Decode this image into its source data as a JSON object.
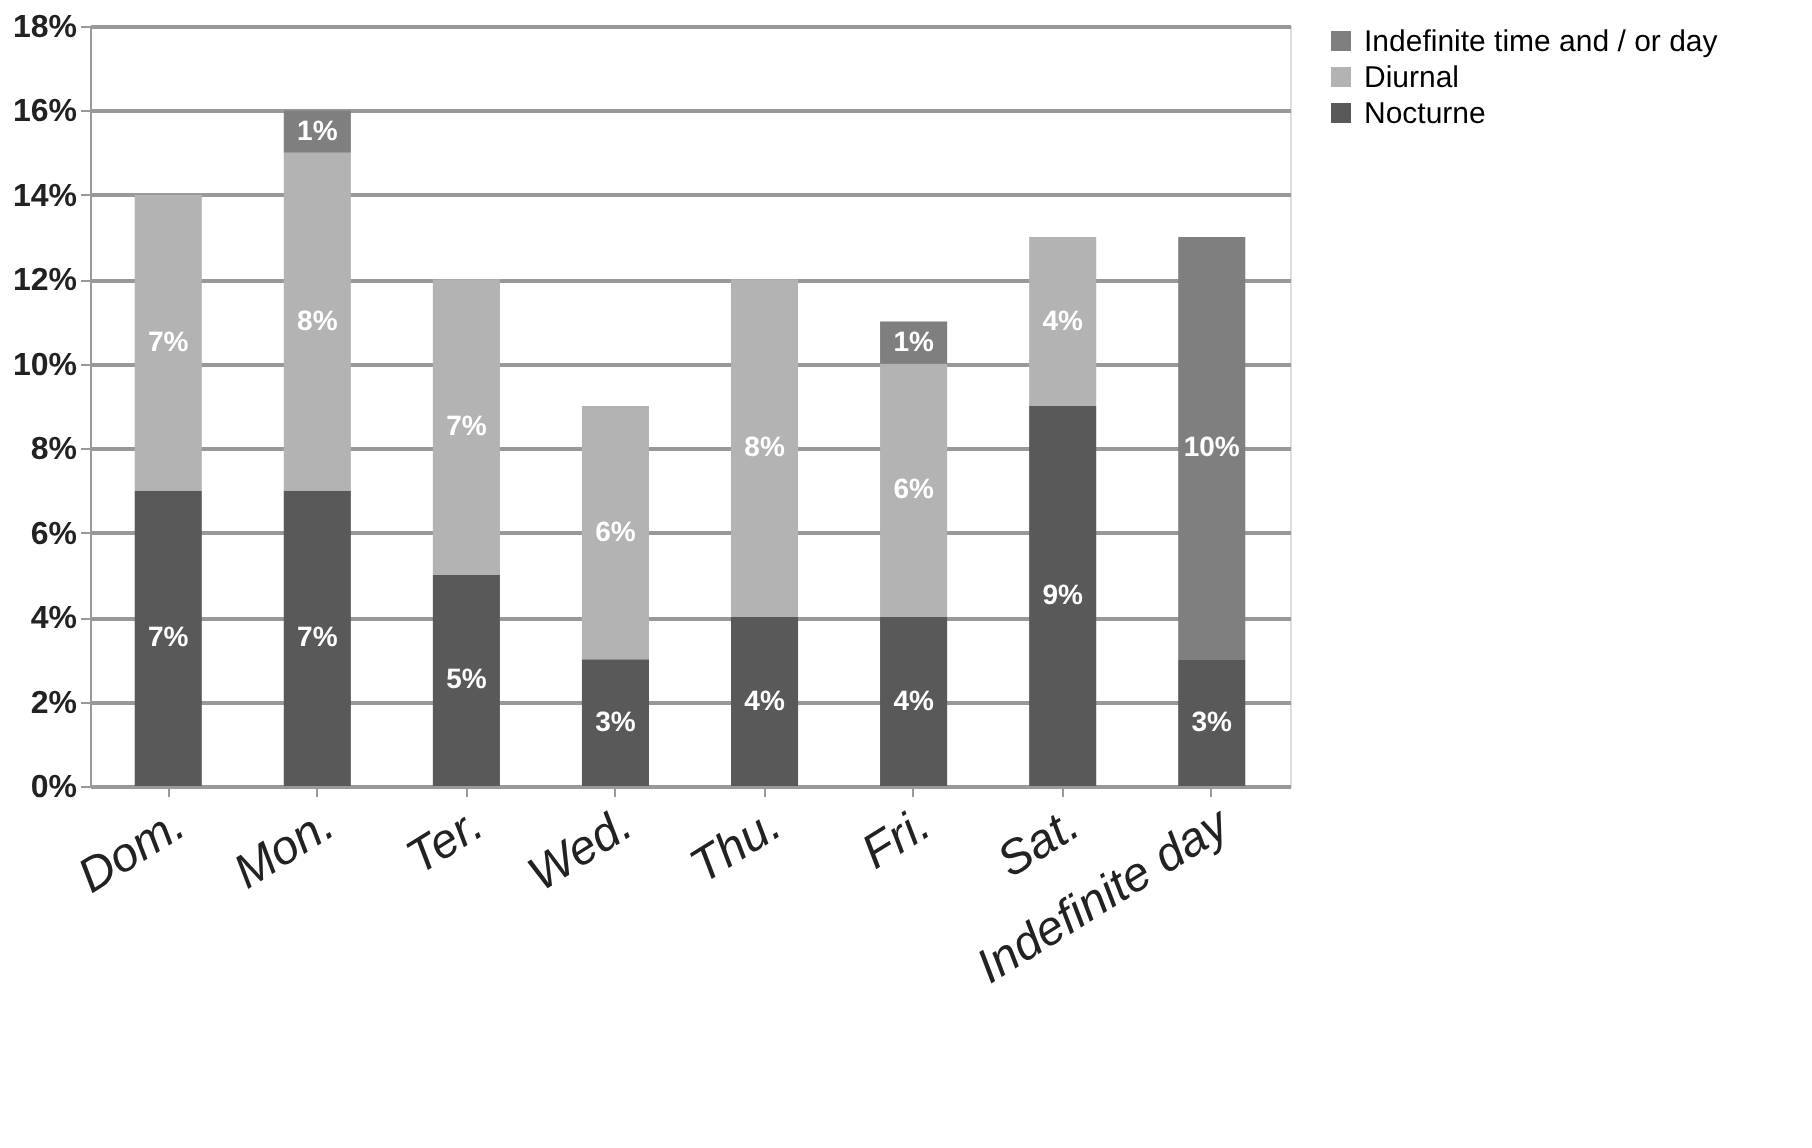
{
  "chart_data": {
    "type": "bar",
    "stacked": true,
    "categories": [
      "Dom.",
      "Mon.",
      "Ter.",
      "Wed.",
      "Thu.",
      "Fri.",
      "Sat.",
      "Indefinite day"
    ],
    "series": [
      {
        "name": "Nocturne",
        "color": "#595959",
        "values": [
          7,
          7,
          5,
          3,
          4,
          4,
          9,
          3
        ],
        "value_labels": [
          "7%",
          "7%",
          "5%",
          "3%",
          "4%",
          "4%",
          "9%",
          "3%"
        ]
      },
      {
        "name": "Diurnal",
        "color": "#b3b3b3",
        "values": [
          7,
          8,
          7,
          6,
          8,
          6,
          4,
          null
        ],
        "value_labels": [
          "7%",
          "8%",
          "7%",
          "6%",
          "8%",
          "6%",
          "4%",
          null
        ]
      },
      {
        "name": "Indefinite time and / or day",
        "color": "#7f7f7f",
        "values": [
          null,
          1,
          null,
          null,
          null,
          1,
          null,
          10
        ],
        "value_labels": [
          null,
          "1%",
          null,
          null,
          null,
          "1%",
          null,
          "10%"
        ]
      }
    ],
    "ylim": [
      0,
      18
    ],
    "yticks": [
      {
        "value": 0,
        "label": "0%"
      },
      {
        "value": 2,
        "label": "2%"
      },
      {
        "value": 4,
        "label": "4%"
      },
      {
        "value": 6,
        "label": "6%"
      },
      {
        "value": 8,
        "label": "8%"
      },
      {
        "value": 10,
        "label": "10%"
      },
      {
        "value": 12,
        "label": "12%"
      },
      {
        "value": 14,
        "label": "14%"
      },
      {
        "value": 16,
        "label": "16%"
      },
      {
        "value": 18,
        "label": "18%"
      }
    ],
    "grid": "y",
    "legend": "right"
  }
}
